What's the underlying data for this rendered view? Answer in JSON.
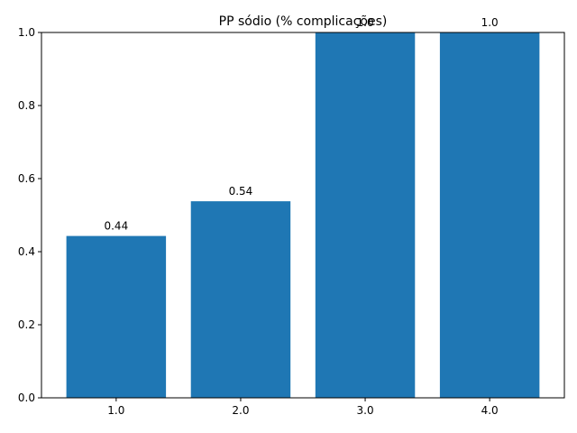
{
  "chart_data": {
    "type": "bar",
    "title": "PP sódio (% complicações)",
    "xlabel": "",
    "ylabel": "",
    "categories": [
      "1.0",
      "2.0",
      "3.0",
      "4.0"
    ],
    "values": [
      0.443,
      0.538,
      1.0,
      1.0
    ],
    "data_labels": [
      "0.44",
      "0.54",
      "1.0",
      "1.0"
    ],
    "ylim": [
      0,
      1.0
    ],
    "xlim": [
      0.4,
      4.6
    ],
    "yticks": [
      "0.0",
      "0.2",
      "0.4",
      "0.6",
      "0.8",
      "1.0"
    ],
    "bar_color": "#1f77b4",
    "grid": false,
    "legend": "none"
  }
}
